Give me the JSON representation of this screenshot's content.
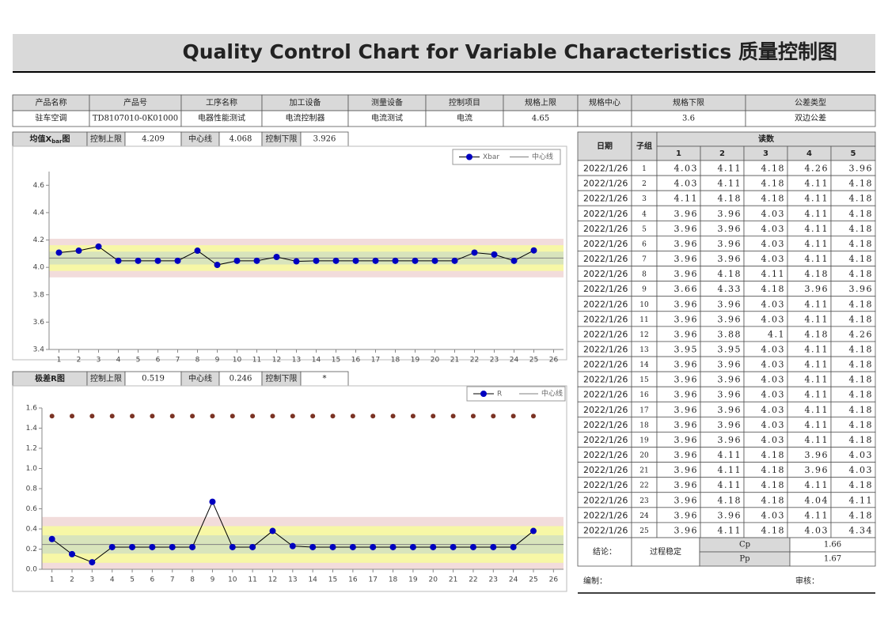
{
  "title": "Quality Control Chart for Variable Characteristics 质量控制图",
  "header": {
    "fields": [
      {
        "label": "产品名称",
        "value": "驻车空调"
      },
      {
        "label": "产品号",
        "value": "TD8107010-0K01000"
      },
      {
        "label": "工序名称",
        "value": "电器性能测试"
      },
      {
        "label": "加工设备",
        "value": "电流控制器"
      },
      {
        "label": "测量设备",
        "value": "电流测试"
      },
      {
        "label": "控制项目",
        "value": "电流"
      },
      {
        "label": "规格上限",
        "value": 4.65
      },
      {
        "label": "规格中心"
      },
      {
        "label": "规格下限",
        "value": 3.6
      },
      {
        "label": "公差类型",
        "value": "双边公差"
      }
    ]
  },
  "chart_data": [
    {
      "type": "line",
      "title_parts": [
        "均值X",
        "bar",
        "图"
      ],
      "limits": [
        {
          "label": "控制上限",
          "value": 4.209
        },
        {
          "label": "中心线",
          "value": 4.068
        },
        {
          "label": "控制下限",
          "value": 3.926
        }
      ],
      "x": [
        1,
        2,
        3,
        4,
        5,
        6,
        7,
        8,
        9,
        10,
        11,
        12,
        13,
        14,
        15,
        16,
        17,
        18,
        19,
        20,
        21,
        22,
        23,
        24,
        25
      ],
      "xlim": [
        0.5,
        26.5
      ],
      "xticks": [
        1,
        2,
        3,
        4,
        5,
        6,
        7,
        8,
        9,
        10,
        11,
        12,
        13,
        14,
        15,
        16,
        17,
        18,
        19,
        20,
        21,
        22,
        23,
        24,
        25,
        26
      ],
      "ylim": [
        3.4,
        4.7
      ],
      "yticks": [
        3.4,
        3.6,
        3.8,
        {
          "value": 4,
          "label": "4.0"
        },
        4.2,
        4.4,
        4.6
      ],
      "series": [
        {
          "name": "Xbar",
          "color": "#0000c0",
          "line": true,
          "values": [
            4.108,
            4.122,
            4.152,
            4.048,
            4.048,
            4.048,
            4.048,
            4.122,
            4.018,
            4.048,
            4.048,
            4.076,
            4.044,
            4.048,
            4.048,
            4.048,
            4.048,
            4.048,
            4.048,
            4.048,
            4.048,
            4.108,
            4.094,
            4.048,
            4.124
          ]
        }
      ],
      "center_line_name": "中心线",
      "center_line_color": "#808080",
      "legend": "top-right",
      "zones": true
    },
    {
      "type": "line",
      "title_parts": [
        "极差R图"
      ],
      "limits": [
        {
          "label": "控制上限",
          "value": 0.519
        },
        {
          "label": "中心线",
          "value": 0.246
        },
        {
          "label": "控制下限",
          "value": "*"
        }
      ],
      "x": [
        1,
        2,
        3,
        4,
        5,
        6,
        7,
        8,
        9,
        10,
        11,
        12,
        13,
        14,
        15,
        16,
        17,
        18,
        19,
        20,
        21,
        22,
        23,
        24,
        25
      ],
      "xlim": [
        0.5,
        26.5
      ],
      "xticks": [
        1,
        2,
        3,
        4,
        5,
        6,
        7,
        8,
        9,
        10,
        11,
        12,
        13,
        14,
        15,
        16,
        17,
        18,
        19,
        20,
        21,
        22,
        23,
        24,
        25,
        26
      ],
      "ylim": [
        0,
        1.6
      ],
      "yticks": [
        {
          "value": 0,
          "label": "0.0"
        },
        0.2,
        0.4,
        0.6,
        0.8,
        {
          "value": 1,
          "label": "1.0"
        },
        1.2,
        1.4,
        1.6
      ],
      "series": [
        {
          "name": "R",
          "color": "#0000c0",
          "line": true,
          "values": [
            0.3,
            0.15,
            0.07,
            0.22,
            0.22,
            0.22,
            0.22,
            0.22,
            0.67,
            0.22,
            0.22,
            0.38,
            0.23,
            0.22,
            0.22,
            0.22,
            0.22,
            0.22,
            0.22,
            0.22,
            0.22,
            0.22,
            0.22,
            0.22,
            0.38
          ]
        },
        {
          "color": "#7b3324",
          "line": false,
          "values": [
            1.52,
            1.52,
            1.52,
            1.52,
            1.52,
            1.52,
            1.52,
            1.52,
            1.52,
            1.52,
            1.52,
            1.52,
            1.52,
            1.52,
            1.52,
            1.52,
            1.52,
            1.52,
            1.52,
            1.52,
            1.52,
            1.52,
            1.52,
            1.52,
            1.52
          ]
        }
      ],
      "center_line_name": "中心线",
      "center_line_color": "#808080",
      "legend": "top-right",
      "zones": true
    }
  ],
  "table": {
    "columns": [
      "日期",
      "子组",
      "读数"
    ],
    "reading_numbers": [
      1,
      2,
      3,
      4,
      5
    ],
    "rows": [
      [
        "2022/1/26",
        1,
        4.03,
        4.11,
        4.18,
        4.26,
        3.96
      ],
      [
        "2022/1/26",
        2,
        4.03,
        4.11,
        4.18,
        4.11,
        4.18
      ],
      [
        "2022/1/26",
        3,
        4.11,
        4.18,
        4.18,
        4.11,
        4.18
      ],
      [
        "2022/1/26",
        4,
        3.96,
        3.96,
        4.03,
        4.11,
        4.18
      ],
      [
        "2022/1/26",
        5,
        3.96,
        3.96,
        4.03,
        4.11,
        4.18
      ],
      [
        "2022/1/26",
        6,
        3.96,
        3.96,
        4.03,
        4.11,
        4.18
      ],
      [
        "2022/1/26",
        7,
        3.96,
        3.96,
        4.03,
        4.11,
        4.18
      ],
      [
        "2022/1/26",
        8,
        3.96,
        4.18,
        4.11,
        4.18,
        4.18
      ],
      [
        "2022/1/26",
        9,
        3.66,
        4.33,
        4.18,
        3.96,
        3.96
      ],
      [
        "2022/1/26",
        10,
        3.96,
        3.96,
        4.03,
        4.11,
        4.18
      ],
      [
        "2022/1/26",
        11,
        3.96,
        3.96,
        4.03,
        4.11,
        4.18
      ],
      [
        "2022/1/26",
        12,
        3.96,
        3.88,
        4.1,
        4.18,
        4.26
      ],
      [
        "2022/1/26",
        13,
        3.95,
        3.95,
        4.03,
        4.11,
        4.18
      ],
      [
        "2022/1/26",
        14,
        3.96,
        3.96,
        4.03,
        4.11,
        4.18
      ],
      [
        "2022/1/26",
        15,
        3.96,
        3.96,
        4.03,
        4.11,
        4.18
      ],
      [
        "2022/1/26",
        16,
        3.96,
        3.96,
        4.03,
        4.11,
        4.18
      ],
      [
        "2022/1/26",
        17,
        3.96,
        3.96,
        4.03,
        4.11,
        4.18
      ],
      [
        "2022/1/26",
        18,
        3.96,
        3.96,
        4.03,
        4.11,
        4.18
      ],
      [
        "2022/1/26",
        19,
        3.96,
        3.96,
        4.03,
        4.11,
        4.18
      ],
      [
        "2022/1/26",
        20,
        3.96,
        4.11,
        4.18,
        3.96,
        4.03
      ],
      [
        "2022/1/26",
        21,
        3.96,
        4.11,
        4.18,
        3.96,
        4.03
      ],
      [
        "2022/1/26",
        22,
        3.96,
        4.11,
        4.18,
        4.11,
        4.18
      ],
      [
        "2022/1/26",
        23,
        3.96,
        4.18,
        4.18,
        4.04,
        4.11
      ],
      [
        "2022/1/26",
        24,
        3.96,
        3.96,
        4.03,
        4.11,
        4.18
      ],
      [
        "2022/1/26",
        25,
        3.96,
        4.11,
        4.18,
        4.03,
        4.34
      ]
    ]
  },
  "footer": {
    "conclusion_label": "结论：",
    "conclusion": "过程稳定",
    "stats": [
      {
        "label": "Cp",
        "value": 1.66
      },
      {
        "label": "Pp",
        "value": 1.67
      }
    ],
    "prepared_by": "编制：",
    "reviewed_by": "审核："
  }
}
